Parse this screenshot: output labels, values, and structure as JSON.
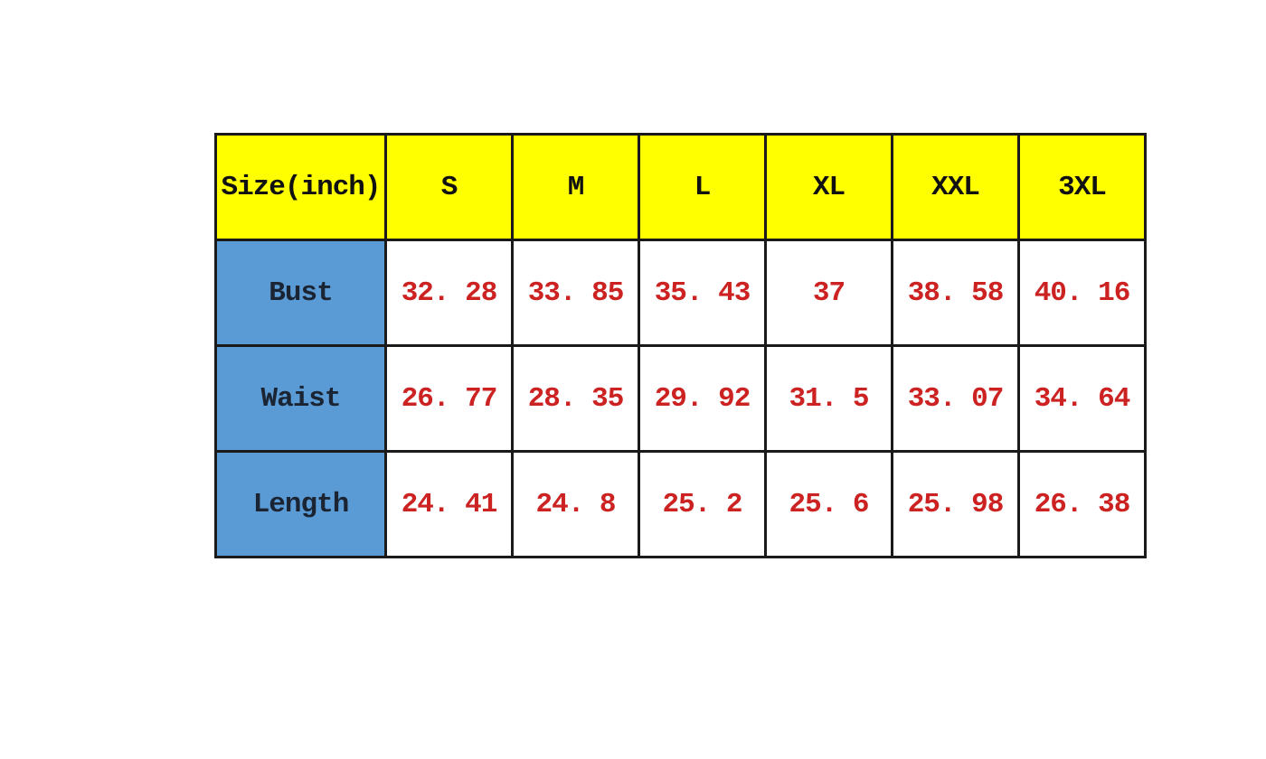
{
  "colors": {
    "page_bg": "#ffffff",
    "header_bg": "#ffff00",
    "header_text": "#111111",
    "label_bg": "#5b9bd5",
    "label_text": "#1b2433",
    "value_color": "#cc2222",
    "border": "#1a1a1a"
  },
  "table": {
    "header": [
      "Size(inch)",
      "S",
      "M",
      "L",
      "XL",
      "XXL",
      "3XL"
    ],
    "rows": [
      {
        "label": "Bust",
        "values": [
          "32. 28",
          "33. 85",
          "35. 43",
          "37",
          "38. 58",
          "40. 16"
        ]
      },
      {
        "label": "Waist",
        "values": [
          "26. 77",
          "28. 35",
          "29. 92",
          "31. 5",
          "33. 07",
          "34. 64"
        ]
      },
      {
        "label": "Length",
        "values": [
          "24. 41",
          "24. 8",
          "25. 2",
          "25. 6",
          "25. 98",
          "26. 38"
        ]
      }
    ]
  },
  "chart_data": {
    "type": "table",
    "title": "Size(inch)",
    "columns": [
      "S",
      "M",
      "L",
      "XL",
      "XXL",
      "3XL"
    ],
    "rows": [
      {
        "label": "Bust",
        "values": [
          32.28,
          33.85,
          35.43,
          37,
          38.58,
          40.16
        ]
      },
      {
        "label": "Waist",
        "values": [
          26.77,
          28.35,
          29.92,
          31.5,
          33.07,
          34.64
        ]
      },
      {
        "label": "Length",
        "values": [
          24.41,
          24.8,
          25.2,
          25.6,
          25.98,
          26.38
        ]
      }
    ]
  }
}
